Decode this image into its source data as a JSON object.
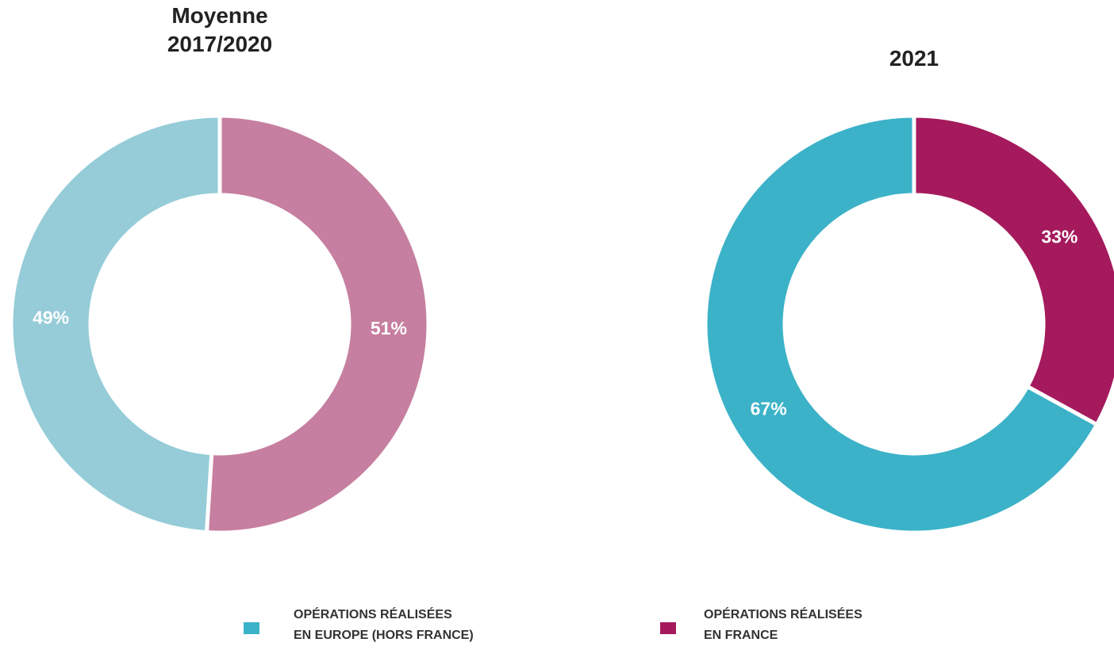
{
  "chart_data": [
    {
      "type": "donut",
      "title": "Moyenne\n2017/2020",
      "values": [
        51,
        49
      ],
      "value_labels": [
        "51%",
        "49%"
      ],
      "colors": [
        "#c67fa0",
        "#95ccd8"
      ]
    },
    {
      "type": "donut",
      "title": "2021",
      "values": [
        33,
        67
      ],
      "value_labels": [
        "33%",
        "67%"
      ],
      "colors": [
        "#a51a5c",
        "#3bb2c8"
      ]
    }
  ],
  "legend": [
    {
      "name": "OPÉRATIONS RÉALISÉES\nEN EUROPE (HORS FRANCE)",
      "color": "#3bb2c8"
    },
    {
      "name": "OPÉRATIONS RÉALISÉES\nEN FRANCE",
      "color": "#a51a5c"
    }
  ]
}
